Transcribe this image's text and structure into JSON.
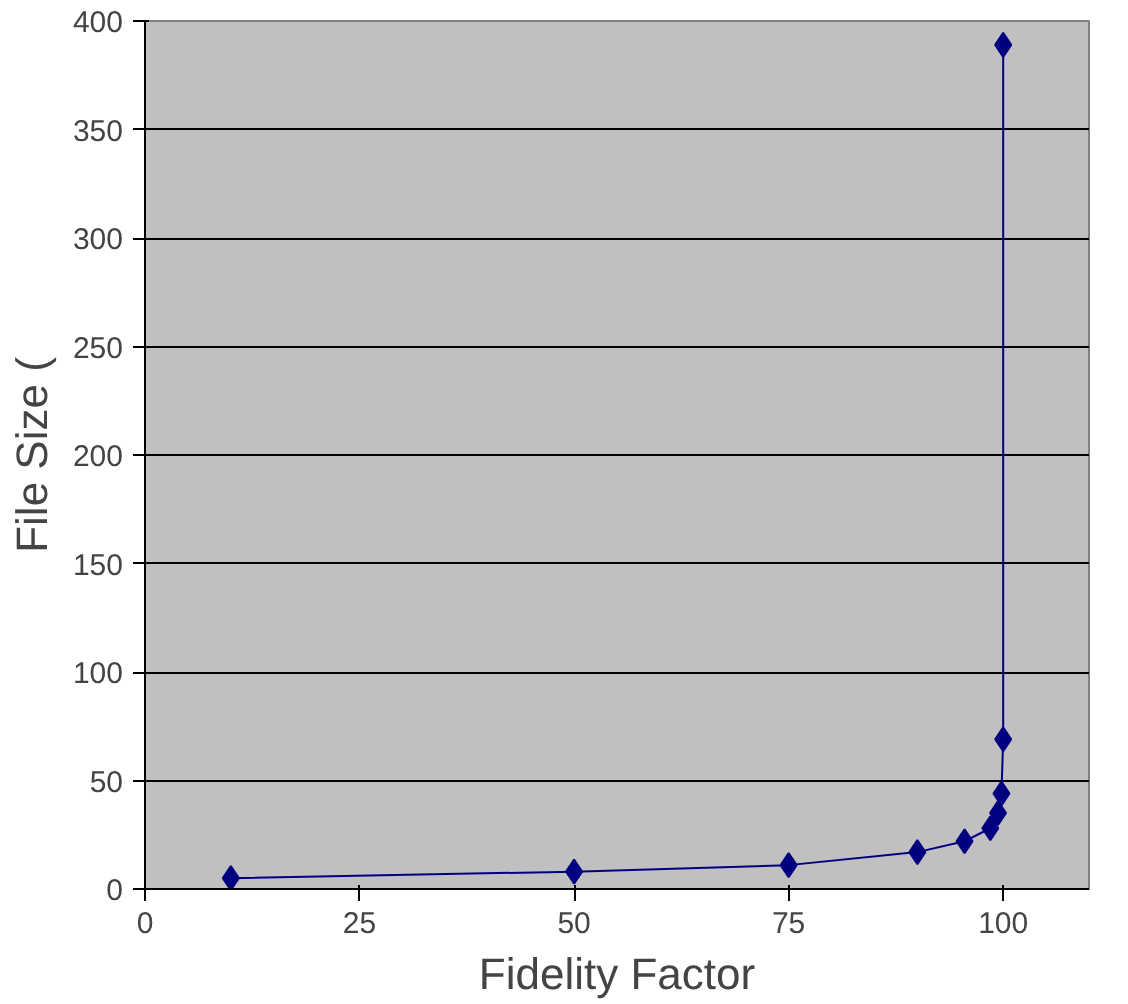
{
  "chart_data": {
    "type": "line",
    "xlabel": "Fidelity Factor",
    "ylabel": "File Size (",
    "x": [
      10,
      50,
      75,
      90,
      95.5,
      98.5,
      99.4,
      99.8,
      100,
      100
    ],
    "series": [
      {
        "color": "#000080",
        "values": [
          5,
          8,
          11,
          17,
          22,
          28,
          35,
          44,
          69,
          389
        ]
      }
    ],
    "xlim": [
      0,
      110
    ],
    "xticks": [
      0,
      25,
      50,
      75,
      100
    ],
    "ylim": [
      0,
      400
    ],
    "yticks": [
      0,
      50,
      100,
      150,
      200,
      250,
      300,
      350,
      400
    ],
    "grid": "y",
    "marker": "diamond",
    "line_style": "solid"
  }
}
